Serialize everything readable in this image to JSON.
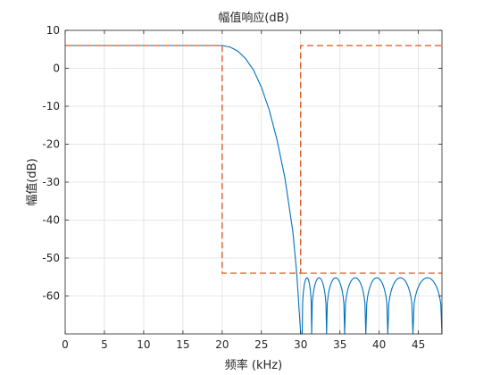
{
  "chart_data": {
    "type": "line",
    "title": "幅值响应(dB)",
    "xlabel": "频率 (kHz)",
    "ylabel": "幅值(dB)",
    "xlim": [
      0,
      48
    ],
    "ylim": [
      -70,
      10
    ],
    "xticks": [
      0,
      5,
      10,
      15,
      20,
      25,
      30,
      35,
      40,
      45
    ],
    "yticks": [
      10,
      0,
      -10,
      -20,
      -30,
      -40,
      -50,
      -60
    ],
    "grid": true,
    "series": [
      {
        "style": "solid",
        "color": "#0072BD",
        "passband": {
          "x": [
            0,
            20
          ],
          "y": 6
        },
        "transition": {
          "x": [
            20,
            21,
            22,
            23,
            24,
            25,
            26,
            27,
            28,
            29,
            29.5,
            30
          ],
          "y": [
            6,
            5.6,
            4.5,
            2.5,
            -0.5,
            -5,
            -11,
            -19,
            -29,
            -43,
            -54,
            -70
          ]
        },
        "stopband": {
          "x_start": 30,
          "x_end": 48,
          "lobe_peak": -55.2,
          "nulls": [
            30.2,
            31.4,
            33.3,
            35.6,
            38.3,
            41.1,
            44.3,
            48
          ]
        }
      },
      {
        "style": "dashed",
        "color": "#D95319",
        "x": [
          0,
          20,
          20,
          30,
          30,
          48
        ],
        "y": [
          6,
          6,
          -54,
          -54,
          6,
          6
        ],
        "stop_x": [
          30,
          48
        ],
        "stop_y": -54
      }
    ]
  }
}
